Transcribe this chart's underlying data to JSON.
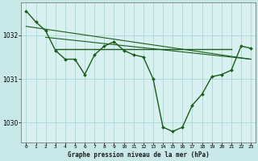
{
  "background_color": "#c8e8e8",
  "plot_bg_color": "#d8f0f0",
  "grid_color": "#a8d8d8",
  "line_color": "#1a5c1a",
  "x_values": [
    0,
    1,
    2,
    3,
    4,
    5,
    6,
    7,
    8,
    9,
    10,
    11,
    12,
    13,
    14,
    15,
    16,
    17,
    18,
    19,
    20,
    21,
    22,
    23
  ],
  "main_series": [
    1032.55,
    1032.3,
    1032.1,
    1031.65,
    1031.45,
    1031.45,
    1031.1,
    1031.55,
    1031.75,
    1031.85,
    1031.65,
    1031.55,
    1031.5,
    1031.0,
    1029.9,
    1029.8,
    1029.9,
    1030.4,
    1030.65,
    1031.05,
    1031.1,
    1031.2,
    1031.75,
    1031.7
  ],
  "diag_line_x": [
    0,
    23
  ],
  "diag_line_y": [
    1032.2,
    1031.45
  ],
  "diag_line2_x": [
    2,
    23
  ],
  "diag_line2_y": [
    1031.95,
    1031.45
  ],
  "flat_line_x": [
    3,
    21
  ],
  "flat_line_y": [
    1031.68,
    1031.68
  ],
  "ylim": [
    1029.55,
    1032.75
  ],
  "yticks": [
    1030,
    1031,
    1032
  ],
  "xlim": [
    -0.5,
    23.5
  ],
  "xlabel": "Graphe pression niveau de la mer (hPa)",
  "figsize": [
    3.2,
    2.0
  ],
  "dpi": 100
}
